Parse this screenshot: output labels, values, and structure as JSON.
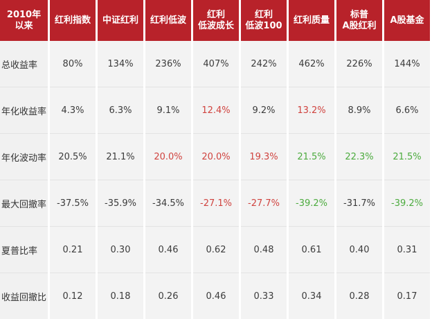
{
  "header": [
    "2010年以来",
    "红利指数",
    "中证红利",
    "红利低波",
    "红利低波成长",
    "红利低波100",
    "红利质量",
    "标普A股红利",
    "A股基金"
  ],
  "header_lines": [
    [
      "2010年",
      "以来"
    ],
    [
      "红利指数"
    ],
    [
      "中证红利"
    ],
    [
      "红利低波"
    ],
    [
      "红利",
      "低波成长"
    ],
    [
      "红利",
      "低波100"
    ],
    [
      "红利质量"
    ],
    [
      "标普",
      "A股红利"
    ],
    [
      "A股基金"
    ]
  ],
  "rows": [
    {
      "label": "总收益率",
      "cells": [
        {
          "v": "80%",
          "color": "normal"
        },
        {
          "v": "134%",
          "color": "normal"
        },
        {
          "v": "236%",
          "color": "normal"
        },
        {
          "v": "407%",
          "color": "normal"
        },
        {
          "v": "242%",
          "color": "normal"
        },
        {
          "v": "462%",
          "color": "normal"
        },
        {
          "v": "226%",
          "color": "normal"
        },
        {
          "v": "144%",
          "color": "normal"
        }
      ]
    },
    {
      "label": "年化收益率",
      "cells": [
        {
          "v": "4.3%",
          "color": "normal"
        },
        {
          "v": "6.3%",
          "color": "normal"
        },
        {
          "v": "9.1%",
          "color": "normal"
        },
        {
          "v": "12.4%",
          "color": "red"
        },
        {
          "v": "9.2%",
          "color": "normal"
        },
        {
          "v": "13.2%",
          "color": "red"
        },
        {
          "v": "8.9%",
          "color": "normal"
        },
        {
          "v": "6.6%",
          "color": "normal"
        }
      ]
    },
    {
      "label": "年化波动率",
      "cells": [
        {
          "v": "20.5%",
          "color": "normal"
        },
        {
          "v": "21.1%",
          "color": "normal"
        },
        {
          "v": "20.0%",
          "color": "red"
        },
        {
          "v": "20.0%",
          "color": "red"
        },
        {
          "v": "19.3%",
          "color": "red"
        },
        {
          "v": "21.5%",
          "color": "green"
        },
        {
          "v": "22.3%",
          "color": "green"
        },
        {
          "v": "21.5%",
          "color": "green"
        }
      ]
    },
    {
      "label": "最大回撤率",
      "cells": [
        {
          "v": "-37.5%",
          "color": "normal"
        },
        {
          "v": "-35.9%",
          "color": "normal"
        },
        {
          "v": "-34.5%",
          "color": "normal"
        },
        {
          "v": "-27.1%",
          "color": "red"
        },
        {
          "v": "-27.7%",
          "color": "red"
        },
        {
          "v": "-39.2%",
          "color": "green"
        },
        {
          "v": "-31.7%",
          "color": "normal"
        },
        {
          "v": "-39.2%",
          "color": "green"
        }
      ]
    },
    {
      "label": "夏普比率",
      "cells": [
        {
          "v": "0.21",
          "color": "normal"
        },
        {
          "v": "0.30",
          "color": "normal"
        },
        {
          "v": "0.46",
          "color": "normal"
        },
        {
          "v": "0.62",
          "color": "normal"
        },
        {
          "v": "0.48",
          "color": "normal"
        },
        {
          "v": "0.61",
          "color": "normal"
        },
        {
          "v": "0.40",
          "color": "normal"
        },
        {
          "v": "0.31",
          "color": "normal"
        }
      ]
    },
    {
      "label": "收益回撤比",
      "cells": [
        {
          "v": "0.12",
          "color": "normal"
        },
        {
          "v": "0.18",
          "color": "normal"
        },
        {
          "v": "0.26",
          "color": "normal"
        },
        {
          "v": "0.46",
          "color": "normal"
        },
        {
          "v": "0.33",
          "color": "normal"
        },
        {
          "v": "0.34",
          "color": "normal"
        },
        {
          "v": "0.28",
          "color": "normal"
        },
        {
          "v": "0.17",
          "color": "normal"
        }
      ]
    }
  ],
  "colors": {
    "header_bg": "#b8222a",
    "header_text": "#ffffff",
    "cell_bg": "#f3f3f3",
    "highlight_red": "#d0433f",
    "highlight_green": "#4cab3e"
  }
}
